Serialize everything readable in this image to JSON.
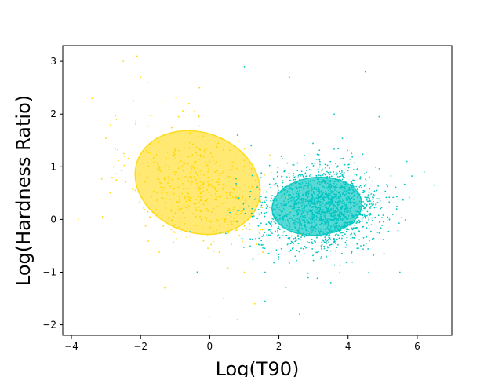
{
  "chart_data": {
    "type": "scatter",
    "title": "",
    "xlabel": "Log(T90)",
    "ylabel": "Log(Hardness Ratio)",
    "xlim": [
      -4.25,
      7.0
    ],
    "ylim": [
      -2.2,
      3.3
    ],
    "x_ticks": [
      -4,
      -2,
      0,
      2,
      4,
      6
    ],
    "y_ticks": [
      -2,
      -1,
      0,
      1,
      2,
      3
    ],
    "grid": false,
    "legend": "none",
    "series": [
      {
        "color": "#FFD700",
        "n_points": 520,
        "center": [
          -0.3,
          0.6
        ],
        "spread": [
          1.0,
          0.55
        ],
        "correlation": -0.25,
        "ellipse": {
          "center": [
            -0.35,
            0.7
          ],
          "semi_axes": [
            1.85,
            0.95
          ],
          "angle_deg": -20
        },
        "outliers": [
          [
            -2.5,
            3.0
          ],
          [
            -2.1,
            3.1
          ],
          [
            -2.0,
            2.7
          ],
          [
            -1.8,
            2.6
          ],
          [
            -3.4,
            2.3
          ],
          [
            -2.2,
            2.25
          ],
          [
            -0.3,
            2.5
          ],
          [
            -0.6,
            2.2
          ],
          [
            0.8,
            -1.9
          ],
          [
            0.0,
            -1.85
          ],
          [
            -3.8,
            0.0
          ],
          [
            1.0,
            -1.0
          ],
          [
            1.3,
            -1.6
          ],
          [
            -1.3,
            -1.3
          ],
          [
            0.4,
            -1.5
          ],
          [
            -3.1,
            0.05
          ],
          [
            -0.9,
            1.95
          ],
          [
            -2.7,
            1.9
          ],
          [
            0.7,
            1.4
          ]
        ]
      },
      {
        "color": "#00C5C0",
        "n_points": 1800,
        "center": [
          3.3,
          0.2
        ],
        "spread": [
          0.85,
          0.4
        ],
        "correlation": 0.05,
        "ellipse": {
          "center": [
            3.1,
            0.25
          ],
          "semi_axes": [
            1.3,
            0.55
          ],
          "angle_deg": 5
        },
        "outliers": [
          [
            1.0,
            2.9
          ],
          [
            2.3,
            2.7
          ],
          [
            4.5,
            2.8
          ],
          [
            3.6,
            2.0
          ],
          [
            4.9,
            1.95
          ],
          [
            2.6,
            -1.8
          ],
          [
            1.6,
            -1.55
          ],
          [
            1.6,
            -1.0
          ],
          [
            3.5,
            -1.2
          ],
          [
            5.5,
            -1.0
          ],
          [
            6.5,
            0.65
          ],
          [
            6.2,
            0.9
          ],
          [
            1.2,
            1.4
          ],
          [
            0.8,
            1.6
          ],
          [
            2.2,
            -1.3
          ],
          [
            5.7,
            1.1
          ],
          [
            4.6,
            -1.0
          ]
        ]
      }
    ]
  }
}
